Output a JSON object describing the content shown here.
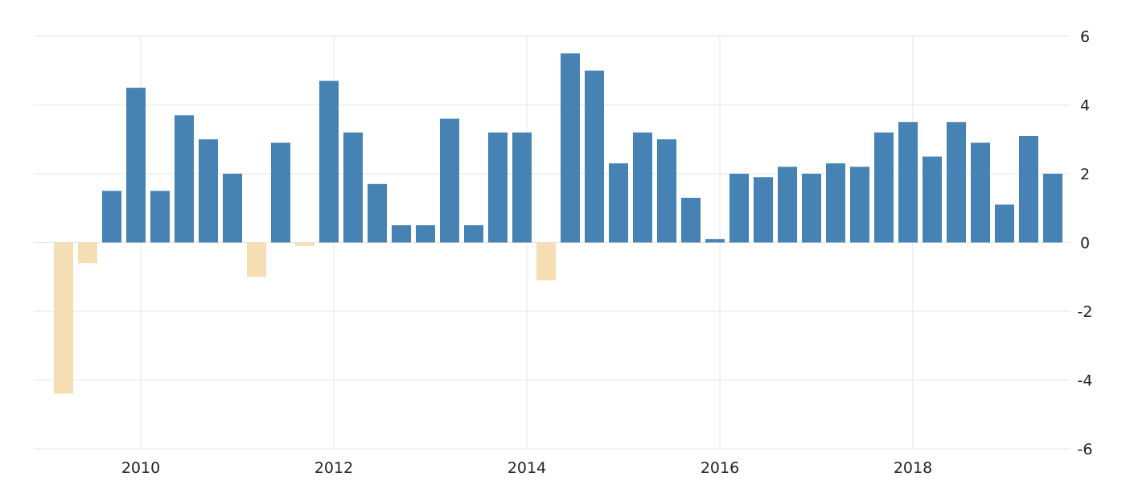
{
  "chart_data": {
    "type": "bar",
    "title": "",
    "xlabel": "",
    "ylabel": "",
    "ylim": [
      -6,
      6
    ],
    "y_ticks": [
      6,
      4,
      2,
      0,
      -2,
      -4,
      -6
    ],
    "y_tick_labels": [
      "6",
      "4",
      "2",
      "0",
      "-2",
      "-4",
      "-6"
    ],
    "x_ticks": [
      2010,
      2012,
      2014,
      2016,
      2018
    ],
    "x_tick_labels": [
      "2010",
      "2012",
      "2014",
      "2016",
      "2018"
    ],
    "grid": true,
    "y_axis_position": "right",
    "x": [
      2009.25,
      2009.5,
      2009.75,
      2010.0,
      2010.25,
      2010.5,
      2010.75,
      2011.0,
      2011.25,
      2011.5,
      2011.75,
      2012.0,
      2012.25,
      2012.5,
      2012.75,
      2013.0,
      2013.25,
      2013.5,
      2013.75,
      2014.0,
      2014.25,
      2014.5,
      2014.75,
      2015.0,
      2015.25,
      2015.5,
      2015.75,
      2016.0,
      2016.25,
      2016.5,
      2016.75,
      2017.0,
      2017.25,
      2017.5,
      2017.75,
      2018.0,
      2018.25,
      2018.5,
      2018.75,
      2019.0,
      2019.25,
      2019.5
    ],
    "values": [
      -4.4,
      -0.6,
      1.5,
      4.5,
      1.5,
      3.7,
      3.0,
      2.0,
      -1.0,
      2.9,
      -0.1,
      4.7,
      3.2,
      1.7,
      0.5,
      0.5,
      3.6,
      0.5,
      3.2,
      3.2,
      -1.1,
      5.5,
      5.0,
      2.3,
      3.2,
      3.0,
      1.3,
      0.1,
      2.0,
      1.9,
      2.2,
      2.0,
      2.3,
      2.2,
      3.2,
      3.5,
      2.5,
      3.5,
      2.9,
      1.1,
      3.1,
      2.0
    ],
    "colors": {
      "positive": "#4682b4",
      "negative": "#f5deb3",
      "grid": "#e6e6e6"
    }
  }
}
